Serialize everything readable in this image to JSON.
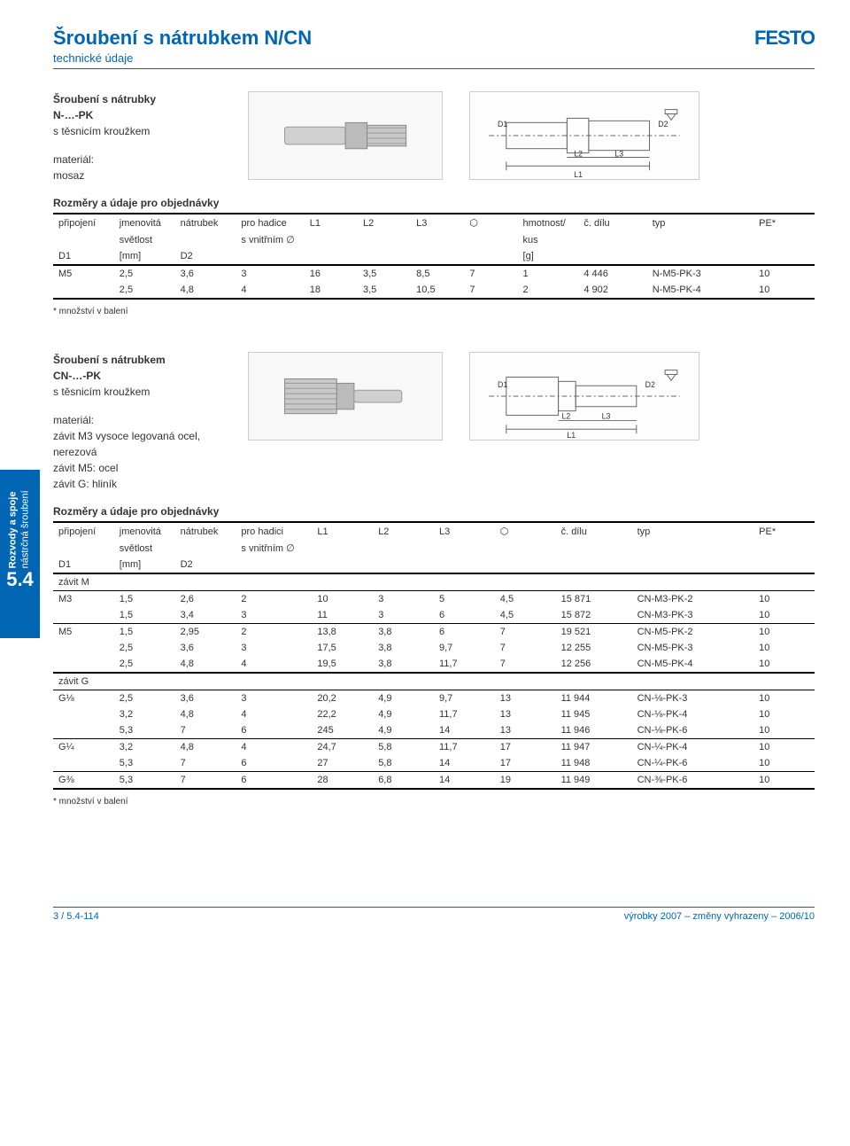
{
  "logo": "FESTO",
  "title": "Šroubení s nátrubkem N/CN",
  "subtitle": "technické údaje",
  "section1": {
    "heading1": "Šroubení s nátrubky",
    "heading2": "N-…-PK",
    "heading3": "s těsnicím kroužkem",
    "material_label": "materiál:",
    "material_value": "mosaz",
    "diagram_labels": {
      "D1": "D1",
      "D2": "D2",
      "L1": "L1",
      "L2": "L2",
      "L3": "L3"
    }
  },
  "table_common": {
    "table_title": "Rozměry a údaje pro objednávky",
    "cols": {
      "pripojeni": "připojení",
      "jmenovita": "jmenovitá",
      "natrubek": "nátrubek",
      "prohadice": "pro hadice",
      "prohadici": "pro hadici",
      "L1": "L1",
      "L2": "L2",
      "L3": "L3",
      "hmotnost": "hmotnost/",
      "cdilu": "č. dílu",
      "typ": "typ",
      "PE": "PE*",
      "svetlost": "světlost",
      "svnitrnim": "s vnitřním ∅",
      "kus": "kus",
      "D1": "D1",
      "mm": "[mm]",
      "D2": "D2",
      "g": "[g]",
      "hexicon": "⬡"
    }
  },
  "table1": {
    "rows": [
      [
        "M5",
        "2,5",
        "3,6",
        "3",
        "16",
        "3,5",
        "8,5",
        "7",
        "1",
        "4 446",
        "N-M5-PK-3",
        "10"
      ],
      [
        "",
        "2,5",
        "4,8",
        "4",
        "18",
        "3,5",
        "10,5",
        "7",
        "2",
        "4 902",
        "N-M5-PK-4",
        "10"
      ]
    ]
  },
  "note": "*   množství v balení",
  "section2": {
    "heading1": "Šroubení s nátrubkem",
    "heading2": "CN-…-PK",
    "heading3": "s těsnicím kroužkem",
    "material_label": "materiál:",
    "material_line1": "závit M3 vysoce legovaná ocel,",
    "material_line2": "nerezová",
    "material_line3": "závit M5: ocel",
    "material_line4": "závit G: hliník",
    "diagram_labels": {
      "D1": "D1",
      "D2": "D2",
      "L1": "L1",
      "L2": "L2",
      "L3": "L3"
    }
  },
  "table2": {
    "zavitM": "závit M",
    "rows_m": [
      [
        "M3",
        "1,5",
        "2,6",
        "2",
        "10",
        "3",
        "5",
        "4,5",
        "15 871",
        "CN-M3-PK-2",
        "10"
      ],
      [
        "",
        "1,5",
        "3,4",
        "3",
        "11",
        "3",
        "6",
        "4,5",
        "15 872",
        "CN-M3-PK-3",
        "10"
      ],
      [
        "M5",
        "1,5",
        "2,95",
        "2",
        "13,8",
        "3,8",
        "6",
        "7",
        "19 521",
        "CN-M5-PK-2",
        "10"
      ],
      [
        "",
        "2,5",
        "3,6",
        "3",
        "17,5",
        "3,8",
        "9,7",
        "7",
        "12 255",
        "CN-M5-PK-3",
        "10"
      ],
      [
        "",
        "2,5",
        "4,8",
        "4",
        "19,5",
        "3,8",
        "11,7",
        "7",
        "12 256",
        "CN-M5-PK-4",
        "10"
      ]
    ],
    "zavitG": "závit G",
    "rows_g": [
      [
        "G⅛",
        "2,5",
        "3,6",
        "3",
        "20,2",
        "4,9",
        "9,7",
        "13",
        "11 944",
        "CN-⅛-PK-3",
        "10"
      ],
      [
        "",
        "3,2",
        "4,8",
        "4",
        "22,2",
        "4,9",
        "11,7",
        "13",
        "11 945",
        "CN-⅛-PK-4",
        "10"
      ],
      [
        "",
        "5,3",
        "7",
        "6",
        "245",
        "4,9",
        "14",
        "13",
        "11 946",
        "CN-⅛-PK-6",
        "10"
      ],
      [
        "G¼",
        "3,2",
        "4,8",
        "4",
        "24,7",
        "5,8",
        "11,7",
        "17",
        "11 947",
        "CN-¼-PK-4",
        "10"
      ],
      [
        "",
        "5,3",
        "7",
        "6",
        "27",
        "5,8",
        "14",
        "17",
        "11 948",
        "CN-¼-PK-6",
        "10"
      ],
      [
        "G⅜",
        "5,3",
        "7",
        "6",
        "28",
        "6,8",
        "14",
        "19",
        "11 949",
        "CN-⅜-PK-6",
        "10"
      ]
    ]
  },
  "side_tab": {
    "line1": "Rozvody a spoje",
    "line2": "nástrčná šroubení",
    "num": "5.4"
  },
  "footer": {
    "left": "3 / 5.4-114",
    "right": "výrobky 2007 – změny vyhrazeny – 2006/10"
  },
  "colwidths": [
    "8%",
    "8%",
    "8%",
    "9%",
    "7%",
    "7%",
    "7%",
    "7%",
    "8%",
    "9%",
    "14%",
    "8%"
  ],
  "colwidths2": [
    "8%",
    "8%",
    "8%",
    "10%",
    "8%",
    "8%",
    "8%",
    "8%",
    "10%",
    "16%",
    "8%"
  ]
}
